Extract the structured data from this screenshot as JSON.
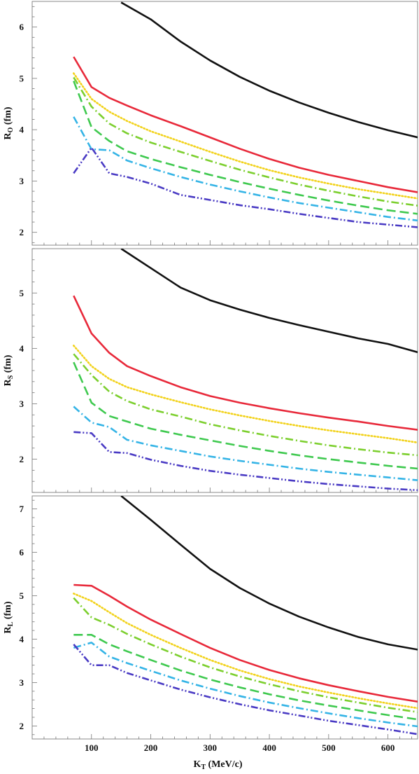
{
  "chart_data": [
    {
      "type": "line",
      "ylabel": "R",
      "ylabel_sub": "O",
      "ylabel_unit": " (fm)",
      "xlabel": "",
      "xlim": [
        0,
        650
      ],
      "ylim": [
        1.75,
        6.5
      ],
      "xticks": [
        100,
        200,
        300,
        400,
        500,
        600
      ],
      "yticks": [
        2,
        3,
        4,
        5,
        6
      ],
      "grid": false,
      "series": [
        {
          "color": "#111111",
          "dash": "solid",
          "x": [
            150,
            200,
            250,
            300,
            350,
            400,
            450,
            500,
            550,
            600,
            650
          ],
          "y": [
            6.48,
            6.15,
            5.72,
            5.35,
            5.03,
            4.76,
            4.53,
            4.33,
            4.15,
            3.99,
            3.85
          ]
        },
        {
          "color": "#e8293a",
          "dash": "solid",
          "x": [
            70,
            100,
            130,
            160,
            200,
            250,
            300,
            350,
            400,
            450,
            500,
            550,
            600,
            650
          ],
          "y": [
            5.42,
            4.83,
            4.62,
            4.47,
            4.28,
            4.07,
            3.85,
            3.63,
            3.43,
            3.26,
            3.12,
            3.0,
            2.88,
            2.78
          ]
        },
        {
          "color": "#f2d21b",
          "dash": "dot",
          "x": [
            70,
            100,
            130,
            160,
            200,
            250,
            300,
            350,
            400,
            450,
            500,
            550,
            600,
            650
          ],
          "y": [
            5.1,
            4.6,
            4.35,
            4.17,
            3.97,
            3.77,
            3.57,
            3.38,
            3.21,
            3.07,
            2.95,
            2.84,
            2.75,
            2.66
          ]
        },
        {
          "color": "#7ccf2e",
          "dash": "dash-dot",
          "x": [
            70,
            100,
            130,
            160,
            200,
            250,
            300,
            350,
            400,
            450,
            500,
            550,
            600,
            650
          ],
          "y": [
            5.02,
            4.45,
            4.12,
            3.93,
            3.75,
            3.57,
            3.39,
            3.22,
            3.07,
            2.93,
            2.81,
            2.7,
            2.6,
            2.52
          ]
        },
        {
          "color": "#3fc94f",
          "dash": "dash",
          "x": [
            70,
            100,
            130,
            160,
            200,
            250,
            300,
            350,
            400,
            450,
            500,
            550,
            600,
            650
          ],
          "y": [
            4.95,
            4.05,
            3.78,
            3.58,
            3.43,
            3.27,
            3.12,
            2.98,
            2.85,
            2.73,
            2.62,
            2.52,
            2.43,
            2.36
          ]
        },
        {
          "color": "#35b4e6",
          "dash": "dash-dot",
          "x": [
            70,
            100,
            130,
            160,
            200,
            250,
            300,
            350,
            400,
            450,
            500,
            550,
            600,
            650
          ],
          "y": [
            4.25,
            3.62,
            3.6,
            3.4,
            3.25,
            3.08,
            2.93,
            2.8,
            2.68,
            2.57,
            2.48,
            2.39,
            2.3,
            2.23
          ]
        },
        {
          "color": "#4a3bc4",
          "dash": "dash-dot-dot",
          "x": [
            70,
            100,
            130,
            160,
            200,
            250,
            300,
            350,
            400,
            450,
            500,
            550,
            600,
            650
          ],
          "y": [
            3.15,
            3.65,
            3.15,
            3.08,
            2.95,
            2.73,
            2.63,
            2.53,
            2.45,
            2.36,
            2.28,
            2.2,
            2.15,
            2.1
          ]
        }
      ]
    },
    {
      "type": "line",
      "ylabel": "R",
      "ylabel_sub": "S",
      "ylabel_unit": " (fm)",
      "xlabel": "",
      "xlim": [
        0,
        650
      ],
      "ylim": [
        1.4,
        5.8
      ],
      "xticks": [
        100,
        200,
        300,
        400,
        500,
        600
      ],
      "yticks": [
        2,
        3,
        4,
        5
      ],
      "grid": false,
      "series": [
        {
          "color": "#111111",
          "dash": "solid",
          "x": [
            150,
            200,
            250,
            300,
            350,
            400,
            450,
            500,
            550,
            600,
            650
          ],
          "y": [
            5.8,
            5.45,
            5.1,
            4.87,
            4.7,
            4.55,
            4.42,
            4.3,
            4.18,
            4.08,
            3.93
          ]
        },
        {
          "color": "#e8293a",
          "dash": "solid",
          "x": [
            70,
            100,
            130,
            160,
            200,
            250,
            300,
            350,
            400,
            450,
            500,
            550,
            600,
            650
          ],
          "y": [
            4.95,
            4.27,
            3.92,
            3.68,
            3.5,
            3.3,
            3.14,
            3.02,
            2.92,
            2.83,
            2.75,
            2.68,
            2.6,
            2.53
          ]
        },
        {
          "color": "#f2d21b",
          "dash": "dot",
          "x": [
            70,
            100,
            130,
            160,
            200,
            250,
            300,
            350,
            400,
            450,
            500,
            550,
            600,
            650
          ],
          "y": [
            4.05,
            3.68,
            3.45,
            3.3,
            3.17,
            3.03,
            2.9,
            2.79,
            2.69,
            2.6,
            2.52,
            2.45,
            2.38,
            2.3
          ]
        },
        {
          "color": "#7ccf2e",
          "dash": "dash-dot",
          "x": [
            70,
            100,
            130,
            160,
            200,
            250,
            300,
            350,
            400,
            450,
            500,
            550,
            600,
            650
          ],
          "y": [
            3.9,
            3.52,
            3.22,
            3.05,
            2.9,
            2.77,
            2.63,
            2.52,
            2.42,
            2.33,
            2.25,
            2.18,
            2.12,
            2.07
          ]
        },
        {
          "color": "#3fc94f",
          "dash": "dash",
          "x": [
            70,
            100,
            130,
            160,
            200,
            250,
            300,
            350,
            400,
            450,
            500,
            550,
            600,
            650
          ],
          "y": [
            3.75,
            3.02,
            2.78,
            2.68,
            2.55,
            2.44,
            2.34,
            2.24,
            2.15,
            2.07,
            2.0,
            1.94,
            1.88,
            1.83
          ]
        },
        {
          "color": "#35b4e6",
          "dash": "dash-dot",
          "x": [
            70,
            100,
            130,
            160,
            200,
            250,
            300,
            350,
            400,
            450,
            500,
            550,
            600,
            650
          ],
          "y": [
            2.95,
            2.66,
            2.58,
            2.35,
            2.25,
            2.15,
            2.05,
            1.97,
            1.9,
            1.83,
            1.77,
            1.72,
            1.67,
            1.62
          ]
        },
        {
          "color": "#4a3bc4",
          "dash": "dash-dot-dot",
          "x": [
            70,
            100,
            130,
            160,
            200,
            250,
            300,
            350,
            400,
            450,
            500,
            550,
            600,
            650
          ],
          "y": [
            2.49,
            2.47,
            2.13,
            2.11,
            1.99,
            1.88,
            1.79,
            1.72,
            1.66,
            1.6,
            1.55,
            1.51,
            1.47,
            1.44
          ]
        }
      ]
    },
    {
      "type": "line",
      "ylabel": "R",
      "ylabel_sub": "L",
      "ylabel_unit": " (fm)",
      "xlabel": "K",
      "xlabel_sub": "T",
      "xlabel_unit": " (MeV/c)",
      "xlim": [
        0,
        650
      ],
      "ylim": [
        1.7,
        7.3
      ],
      "xticks": [
        100,
        200,
        300,
        400,
        500,
        600
      ],
      "yticks": [
        2,
        3,
        4,
        5,
        6,
        7
      ],
      "grid": false,
      "series": [
        {
          "color": "#111111",
          "dash": "solid",
          "x": [
            150,
            200,
            250,
            300,
            350,
            400,
            450,
            500,
            550,
            600,
            650
          ],
          "y": [
            7.3,
            6.75,
            6.18,
            5.62,
            5.18,
            4.82,
            4.52,
            4.27,
            4.05,
            3.88,
            3.76
          ]
        },
        {
          "color": "#e8293a",
          "dash": "solid",
          "x": [
            70,
            100,
            130,
            160,
            200,
            250,
            300,
            350,
            400,
            450,
            500,
            550,
            600,
            650
          ],
          "y": [
            5.25,
            5.23,
            5.0,
            4.75,
            4.45,
            4.12,
            3.8,
            3.52,
            3.29,
            3.1,
            2.94,
            2.8,
            2.67,
            2.56
          ]
        },
        {
          "color": "#f2d21b",
          "dash": "dot",
          "x": [
            70,
            100,
            130,
            160,
            200,
            250,
            300,
            350,
            400,
            450,
            500,
            550,
            600,
            650
          ],
          "y": [
            5.05,
            4.88,
            4.62,
            4.37,
            4.1,
            3.8,
            3.52,
            3.28,
            3.08,
            2.91,
            2.77,
            2.64,
            2.52,
            2.41
          ]
        },
        {
          "color": "#7ccf2e",
          "dash": "dash-dot",
          "x": [
            70,
            100,
            130,
            160,
            200,
            250,
            300,
            350,
            400,
            450,
            500,
            550,
            600,
            650
          ],
          "y": [
            4.95,
            4.5,
            4.33,
            4.12,
            3.88,
            3.6,
            3.35,
            3.14,
            2.96,
            2.8,
            2.66,
            2.54,
            2.42,
            2.32
          ]
        },
        {
          "color": "#3fc94f",
          "dash": "dash",
          "x": [
            70,
            100,
            130,
            160,
            200,
            250,
            300,
            350,
            400,
            450,
            500,
            550,
            600,
            650
          ],
          "y": [
            4.1,
            4.1,
            3.88,
            3.72,
            3.52,
            3.28,
            3.07,
            2.89,
            2.73,
            2.59,
            2.47,
            2.36,
            2.25,
            2.15
          ]
        },
        {
          "color": "#35b4e6",
          "dash": "dash-dot",
          "x": [
            70,
            100,
            130,
            160,
            200,
            250,
            300,
            350,
            400,
            450,
            500,
            550,
            600,
            650
          ],
          "y": [
            3.8,
            3.92,
            3.6,
            3.45,
            3.27,
            3.05,
            2.86,
            2.69,
            2.54,
            2.41,
            2.29,
            2.18,
            2.08,
            1.99
          ]
        },
        {
          "color": "#4a3bc4",
          "dash": "dash-dot-dot",
          "x": [
            70,
            100,
            130,
            160,
            200,
            250,
            300,
            350,
            400,
            450,
            500,
            550,
            600,
            650
          ],
          "y": [
            3.88,
            3.4,
            3.4,
            3.22,
            3.05,
            2.84,
            2.66,
            2.5,
            2.36,
            2.24,
            2.12,
            2.02,
            1.92,
            1.81
          ]
        }
      ]
    }
  ]
}
